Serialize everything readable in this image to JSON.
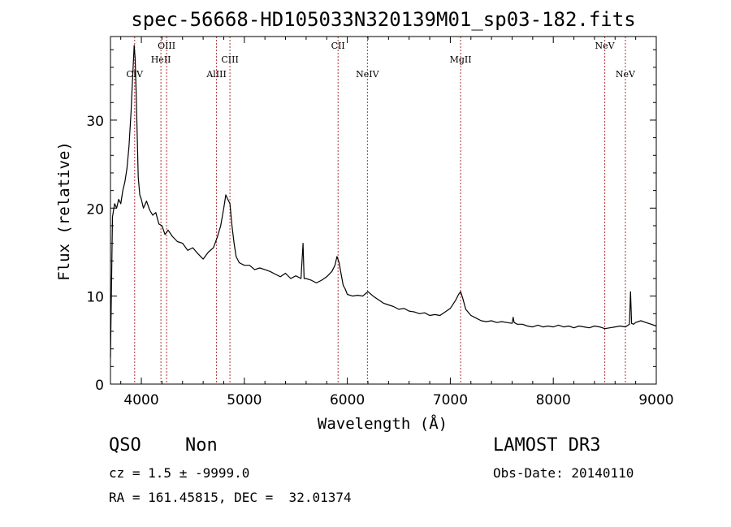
{
  "chart_data": {
    "type": "line",
    "title": "spec-56668-HD105033N320139M01_sp03-182.fits",
    "xlabel": "Wavelength (Å)",
    "ylabel": "Flux (relative)",
    "xlim": [
      3700,
      9000
    ],
    "ylim": [
      0,
      39.5
    ],
    "x_ticks": [
      "4000",
      "5000",
      "6000",
      "7000",
      "8000",
      "9000"
    ],
    "x_tick_values": [
      4000,
      5000,
      6000,
      7000,
      8000,
      9000
    ],
    "y_ticks": [
      "0",
      "10",
      "20",
      "30"
    ],
    "y_tick_values": [
      0,
      10,
      20,
      30
    ],
    "grid": false,
    "line_color": "#000000",
    "marker_color": "#b03030",
    "lines": [
      {
        "name": "CIV",
        "wavelength": 3935,
        "row": 2
      },
      {
        "name": "HeII",
        "wavelength": 4190,
        "row": 1
      },
      {
        "name": "OIII",
        "wavelength": 4245,
        "row": 0
      },
      {
        "name": "AlIII",
        "wavelength": 4730,
        "row": 2
      },
      {
        "name": "CIII",
        "wavelength": 4860,
        "row": 1
      },
      {
        "name": "CII",
        "wavelength": 5910,
        "row": 0
      },
      {
        "name": "NeIV",
        "wavelength": 6195,
        "row": 2
      },
      {
        "name": "MgII",
        "wavelength": 7100,
        "row": 1
      },
      {
        "name": "NeV",
        "wavelength": 8500,
        "row": 0
      },
      {
        "name": "NeV",
        "wavelength": 8700,
        "row": 2
      }
    ],
    "series": [
      {
        "x": [
          3700,
          3720,
          3740,
          3760,
          3780,
          3800,
          3820,
          3840,
          3860,
          3880,
          3900,
          3910,
          3920,
          3930,
          3940,
          3950,
          3960,
          3970,
          3985,
          4000,
          4020,
          4050,
          4080,
          4110,
          4140,
          4170,
          4200,
          4230,
          4260,
          4300,
          4350,
          4400,
          4450,
          4500,
          4550,
          4600,
          4650,
          4700,
          4740,
          4770,
          4800,
          4820,
          4840,
          4860,
          4880,
          4900,
          4920,
          4950,
          5000,
          5050,
          5100,
          5150,
          5200,
          5250,
          5300,
          5350,
          5400,
          5450,
          5500,
          5550,
          5570,
          5580,
          5600,
          5650,
          5700,
          5750,
          5800,
          5850,
          5880,
          5900,
          5920,
          5940,
          5960,
          5980,
          6000,
          6050,
          6100,
          6150,
          6200,
          6250,
          6300,
          6350,
          6400,
          6450,
          6500,
          6550,
          6600,
          6650,
          6700,
          6750,
          6800,
          6850,
          6900,
          6950,
          7000,
          7050,
          7080,
          7100,
          7120,
          7150,
          7200,
          7250,
          7300,
          7350,
          7400,
          7450,
          7500,
          7550,
          7600,
          7610,
          7620,
          7650,
          7700,
          7750,
          7800,
          7850,
          7900,
          7950,
          8000,
          8050,
          8100,
          8150,
          8200,
          8250,
          8300,
          8350,
          8400,
          8450,
          8500,
          8550,
          8600,
          8650,
          8700,
          8740,
          8750,
          8760,
          8780,
          8800,
          8850,
          8900,
          8950,
          9000
        ],
        "y": [
          3.0,
          19.0,
          20.5,
          20.0,
          21.0,
          20.5,
          22.0,
          23.0,
          24.5,
          27.0,
          31.0,
          33.5,
          36.0,
          38.5,
          37.0,
          33.0,
          28.0,
          23.5,
          21.5,
          21.0,
          20.0,
          20.8,
          19.8,
          19.2,
          19.5,
          18.2,
          18.0,
          17.0,
          17.5,
          16.8,
          16.2,
          16.0,
          15.2,
          15.5,
          14.8,
          14.2,
          15.0,
          15.5,
          16.8,
          18.0,
          20.0,
          21.5,
          21.0,
          20.5,
          18.0,
          16.0,
          14.5,
          13.8,
          13.5,
          13.5,
          13.0,
          13.2,
          13.0,
          12.8,
          12.5,
          12.2,
          12.6,
          12.0,
          12.3,
          12.0,
          16.0,
          12.0,
          12.0,
          11.8,
          11.5,
          11.8,
          12.2,
          12.8,
          13.5,
          14.5,
          13.8,
          12.5,
          11.2,
          10.8,
          10.2,
          10.0,
          10.1,
          10.0,
          10.5,
          10.0,
          9.6,
          9.2,
          9.0,
          8.8,
          8.5,
          8.6,
          8.3,
          8.2,
          8.0,
          8.1,
          7.8,
          7.9,
          7.8,
          8.2,
          8.6,
          9.5,
          10.2,
          10.5,
          9.8,
          8.5,
          7.8,
          7.5,
          7.2,
          7.1,
          7.2,
          7.0,
          7.1,
          7.0,
          6.9,
          7.6,
          7.0,
          6.8,
          6.8,
          6.6,
          6.5,
          6.7,
          6.5,
          6.6,
          6.5,
          6.7,
          6.5,
          6.6,
          6.4,
          6.6,
          6.5,
          6.4,
          6.6,
          6.5,
          6.3,
          6.4,
          6.5,
          6.6,
          6.5,
          6.8,
          10.5,
          6.9,
          6.8,
          7.0,
          7.2,
          7.0,
          6.8,
          6.6
        ]
      }
    ]
  },
  "info": {
    "class": "QSO",
    "subclass": "Non",
    "survey": "LAMOST DR3",
    "cz": "cz = 1.5 ± -9999.0",
    "obs_date": "Obs-Date: 20140110",
    "coords": "RA = 161.45815, DEC =  32.01374"
  }
}
